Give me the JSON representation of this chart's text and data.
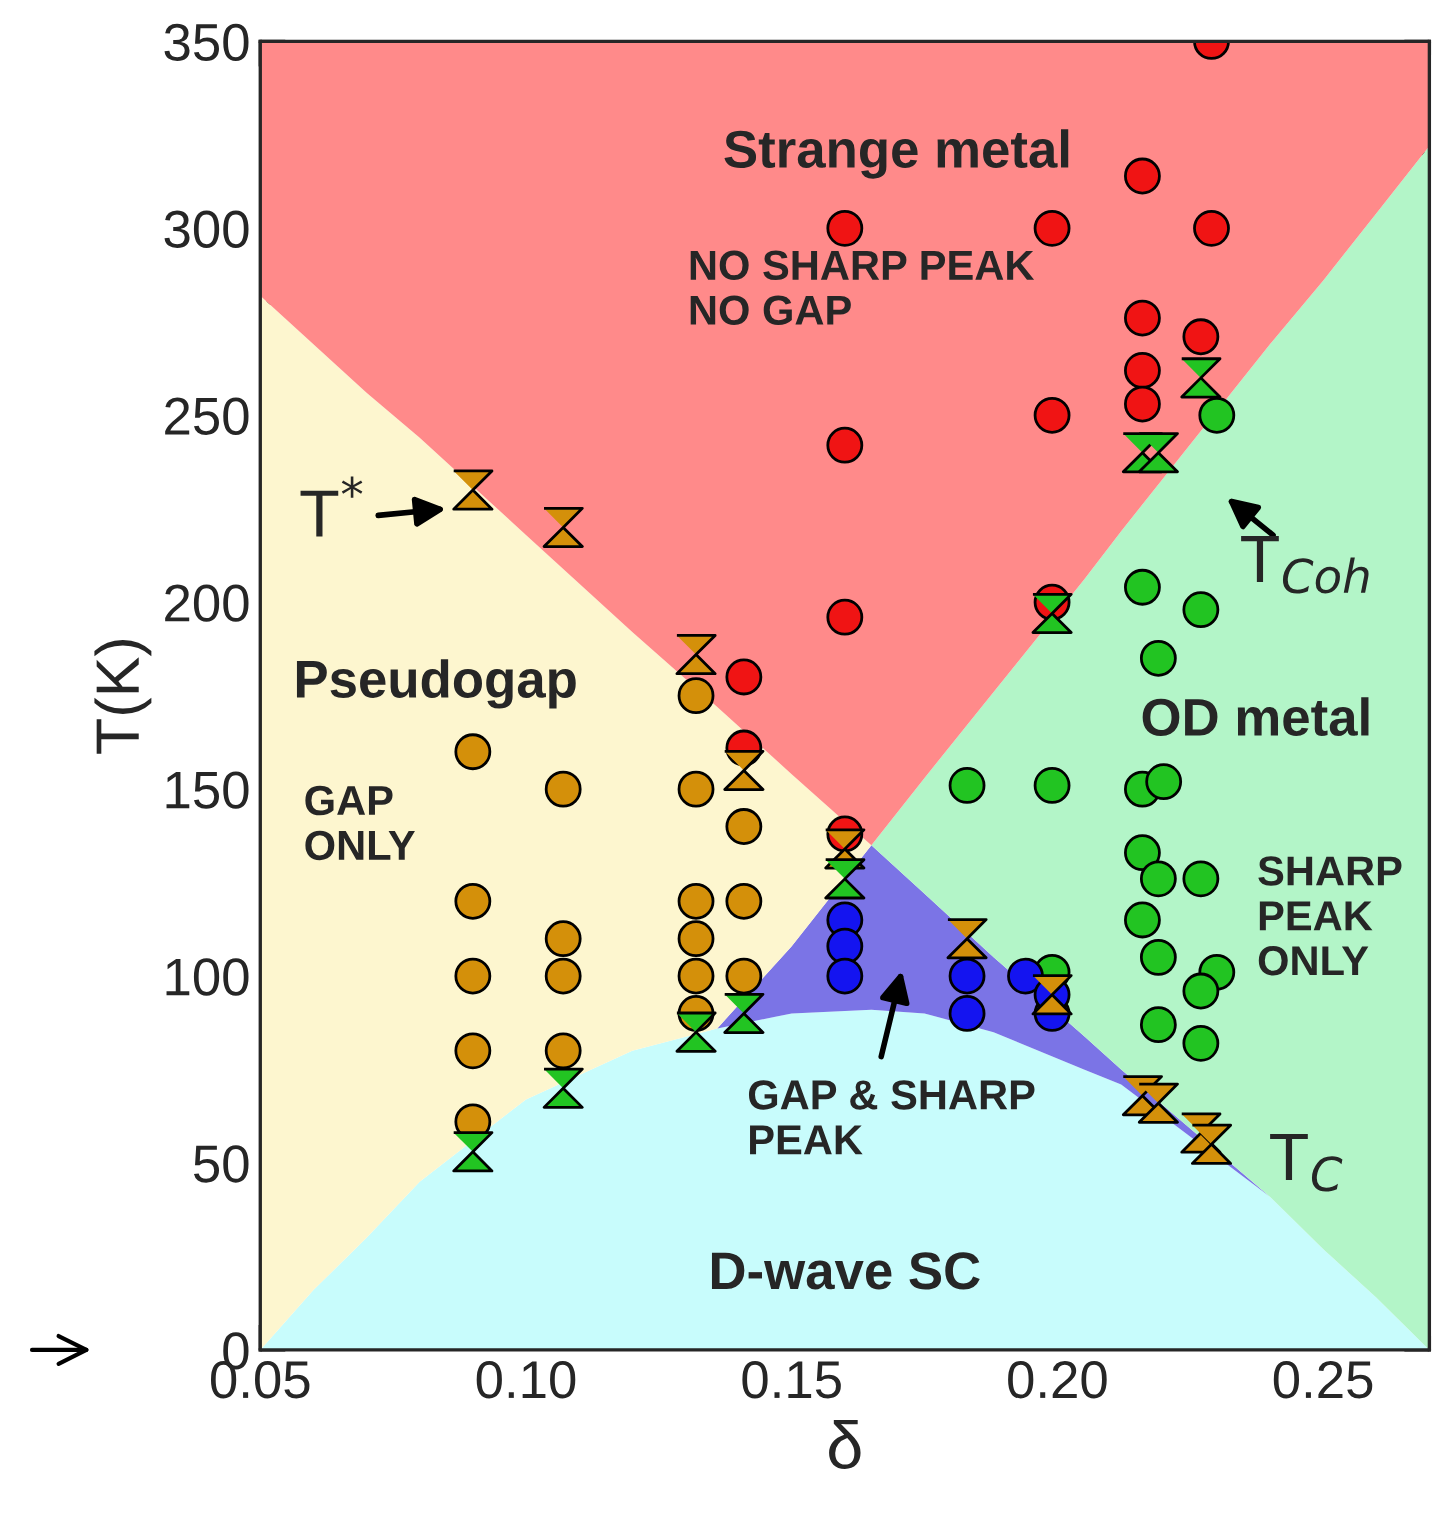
{
  "chart_data": {
    "type": "scatter",
    "xlabel": "δ",
    "ylabel": "T(K)",
    "xlim": [
      0.05,
      0.27
    ],
    "ylim": [
      0,
      350
    ],
    "xticks": [
      {
        "value": 0.05,
        "label": "0.05"
      },
      {
        "value": 0.1,
        "label": "0.10"
      },
      {
        "value": 0.15,
        "label": "0.15"
      },
      {
        "value": 0.2,
        "label": "0.20"
      },
      {
        "value": 0.25,
        "label": "0.25"
      }
    ],
    "yticks": [
      0,
      50,
      100,
      150,
      200,
      250,
      300,
      350
    ],
    "grid": false,
    "legend": false,
    "stacked": true,
    "series": [
      {
        "type": "area",
        "color": "#c8fcfc",
        "x": [
          0.05,
          0.06,
          0.07,
          0.08,
          0.1,
          0.12,
          0.136,
          0.15,
          0.165,
          0.175,
          0.188,
          0.205,
          0.212,
          0.24,
          0.25,
          0.26,
          0.27
        ],
        "values": [
          0,
          16,
          30,
          45,
          67,
          80,
          86,
          90,
          91,
          90,
          85,
          75,
          71,
          41,
          27,
          14,
          0
        ]
      },
      {
        "type": "area",
        "color": "#7b74e6",
        "x": [
          0.05,
          0.06,
          0.07,
          0.08,
          0.1,
          0.12,
          0.136,
          0.15,
          0.165,
          0.175,
          0.188,
          0.205,
          0.212,
          0.24,
          0.25,
          0.26,
          0.27
        ],
        "values": [
          0,
          0,
          0,
          0,
          0,
          0,
          0,
          18,
          44,
          32,
          20,
          9,
          4,
          0,
          0,
          0,
          0
        ]
      },
      {
        "type": "area",
        "color": "#fdf6cf",
        "x": [
          0.05,
          0.06,
          0.07,
          0.08,
          0.1,
          0.12,
          0.136,
          0.15,
          0.165,
          0.175,
          0.188,
          0.205,
          0.212,
          0.24,
          0.25,
          0.26,
          0.27
        ],
        "values": [
          282,
          253,
          226,
          199,
          151,
          112,
          86,
          46,
          0,
          0,
          0,
          0,
          0,
          0,
          0,
          0,
          0
        ]
      },
      {
        "type": "area",
        "color": "#b3f5c8",
        "x": [
          0.05,
          0.06,
          0.07,
          0.08,
          0.1,
          0.12,
          0.136,
          0.15,
          0.165,
          0.175,
          0.188,
          0.205,
          0.212,
          0.24,
          0.25,
          0.26,
          0.27
        ],
        "values": [
          0,
          0,
          0,
          0,
          0,
          0,
          0,
          0,
          0,
          31,
          71,
          122,
          144,
          228,
          259,
          290,
          322
        ]
      },
      {
        "type": "area",
        "color": "#ff8a8a",
        "x": [
          0.05,
          0.06,
          0.07,
          0.08,
          0.1,
          0.12,
          0.136,
          0.15,
          0.165,
          0.175,
          0.188,
          0.205,
          0.212,
          0.24,
          0.25,
          0.26,
          0.27
        ],
        "values": [
          68,
          81,
          94,
          106,
          132,
          158,
          178,
          196,
          215,
          197,
          174,
          144,
          131,
          81,
          64,
          46,
          28
        ]
      },
      {
        "marker": "circle",
        "color": "#d4900a",
        "x": [
          0.09,
          0.09,
          0.09,
          0.09,
          0.09,
          0.107,
          0.107,
          0.107,
          0.107,
          0.132,
          0.132,
          0.132,
          0.132,
          0.132,
          0.132,
          0.141,
          0.141,
          0.141
        ],
        "values": [
          160,
          120,
          100,
          80,
          61,
          150,
          110,
          100,
          80,
          175,
          150,
          120,
          110,
          100,
          90,
          140,
          120,
          100
        ]
      },
      {
        "marker": "circle",
        "color": "#f01414",
        "x": [
          0.16,
          0.199,
          0.229,
          0.216,
          0.229,
          0.216,
          0.227,
          0.216,
          0.216,
          0.199,
          0.16,
          0.199,
          0.16,
          0.141,
          0.16,
          0.141
        ],
        "values": [
          300,
          300,
          300,
          314,
          350,
          276,
          271,
          262,
          253,
          250,
          242,
          200,
          196,
          180,
          138,
          161
        ]
      },
      {
        "marker": "circle",
        "color": "#22c422",
        "x": [
          0.23,
          0.216,
          0.227,
          0.219,
          0.183,
          0.199,
          0.216,
          0.22,
          0.216,
          0.219,
          0.227,
          0.216,
          0.219,
          0.23,
          0.227,
          0.219,
          0.227,
          0.199
        ],
        "values": [
          250,
          204,
          198,
          185,
          151,
          151,
          150,
          152,
          133,
          126,
          126,
          115,
          105,
          101,
          96,
          87,
          82,
          101
        ]
      },
      {
        "marker": "circle",
        "color": "#1414f0",
        "x": [
          0.16,
          0.16,
          0.16,
          0.183,
          0.183,
          0.194,
          0.199,
          0.199
        ],
        "values": [
          115,
          108,
          100,
          100,
          90,
          100,
          90,
          95
        ]
      },
      {
        "marker": "cross",
        "color": "#d4900a",
        "x": [
          0.09,
          0.107,
          0.132,
          0.141,
          0.16,
          0.183,
          0.199,
          0.216,
          0.219,
          0.227,
          0.229
        ],
        "values": [
          230,
          220,
          186,
          155,
          134,
          110,
          95,
          68,
          66,
          58,
          55
        ]
      },
      {
        "marker": "cross",
        "color": "#22c422",
        "x": [
          0.09,
          0.107,
          0.132,
          0.141,
          0.16,
          0.216,
          0.219,
          0.227,
          0.199
        ],
        "values": [
          53,
          70,
          85,
          90,
          126,
          240,
          240,
          260,
          197
        ]
      }
    ],
    "annotations": [
      "Strange metal",
      "NO SHARP PEAK\nNO GAP",
      "Pseudogap",
      "GAP\nONLY",
      "OD metal",
      "SHARP\nPEAK\nONLY",
      "GAP & SHARP\nPEAK",
      "D-wave SC",
      {
        "text": "T$^{*}$",
        "x": 0.085,
        "y": 225
      },
      "T$_{Coh}$",
      "T$_{C}$"
    ]
  }
}
